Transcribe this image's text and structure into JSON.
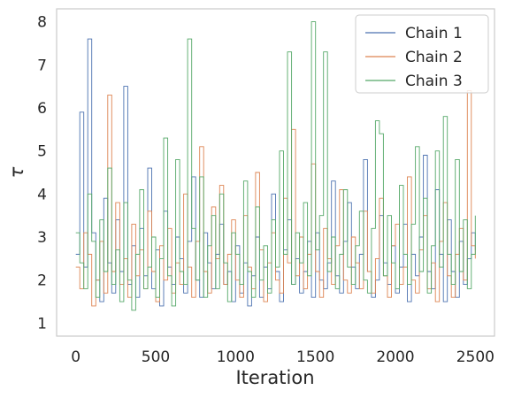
{
  "chart_data": {
    "type": "line",
    "title": "",
    "xlabel": "Iteration",
    "ylabel": "τ",
    "xlim": [
      -120,
      2620
    ],
    "ylim": [
      0.7,
      8.3
    ],
    "xticks": [
      0,
      500,
      1000,
      1500,
      2000,
      2500
    ],
    "yticks": [
      1,
      2,
      3,
      4,
      5,
      6,
      7,
      8
    ],
    "grid": false,
    "legend_position": "top-right",
    "n_iterations": 2500,
    "series": [
      {
        "name": "Chain 1",
        "color": "#4c72b0",
        "x": [
          0,
          25,
          50,
          75,
          100,
          125,
          150,
          175,
          200,
          225,
          250,
          275,
          300,
          325,
          350,
          375,
          400,
          425,
          450,
          475,
          500,
          525,
          550,
          575,
          600,
          625,
          650,
          675,
          700,
          725,
          750,
          775,
          800,
          825,
          850,
          875,
          900,
          925,
          950,
          975,
          1000,
          1025,
          1050,
          1075,
          1100,
          1125,
          1150,
          1175,
          1200,
          1225,
          1250,
          1275,
          1300,
          1325,
          1350,
          1375,
          1400,
          1425,
          1450,
          1475,
          1500,
          1525,
          1550,
          1575,
          1600,
          1625,
          1650,
          1675,
          1700,
          1725,
          1750,
          1775,
          1800,
          1825,
          1850,
          1875,
          1900,
          1925,
          1950,
          1975,
          2000,
          2025,
          2050,
          2075,
          2100,
          2125,
          2150,
          2175,
          2200,
          2225,
          2250,
          2275,
          2300,
          2325,
          2350,
          2375,
          2400,
          2425,
          2450,
          2475,
          2500
        ],
        "values": [
          2.6,
          5.9,
          2.3,
          7.6,
          3.1,
          2.0,
          1.5,
          3.9,
          2.4,
          1.7,
          3.4,
          2.2,
          6.5,
          1.9,
          2.8,
          1.6,
          3.2,
          2.1,
          4.6,
          1.8,
          2.7,
          1.4,
          3.6,
          2.3,
          1.9,
          3.0,
          2.5,
          1.7,
          2.9,
          4.4,
          2.0,
          1.6,
          3.1,
          2.4,
          1.8,
          2.6,
          3.3,
          1.9,
          2.2,
          1.5,
          2.8,
          1.7,
          2.4,
          1.4,
          2.1,
          3.0,
          1.6,
          2.3,
          1.8,
          4.0,
          2.2,
          1.5,
          2.7,
          3.4,
          1.9,
          2.5,
          1.7,
          2.2,
          2.9,
          1.6,
          3.1,
          2.0,
          1.8,
          2.4,
          4.3,
          2.1,
          1.7,
          2.9,
          3.8,
          2.3,
          1.8,
          2.6,
          4.8,
          2.2,
          1.6,
          2.0,
          3.5,
          2.4,
          1.9,
          2.8,
          1.7,
          2.3,
          3.3,
          1.5,
          2.6,
          2.1,
          3.0,
          4.9,
          2.2,
          1.8,
          4.1,
          2.6,
          1.5,
          3.4,
          2.2,
          1.6,
          2.9,
          1.9,
          2.5,
          3.1,
          2.7
        ]
      },
      {
        "name": "Chain 2",
        "color": "#dd8452",
        "x": [
          0,
          25,
          50,
          75,
          100,
          125,
          150,
          175,
          200,
          225,
          250,
          275,
          300,
          325,
          350,
          375,
          400,
          425,
          450,
          475,
          500,
          525,
          550,
          575,
          600,
          625,
          650,
          675,
          700,
          725,
          750,
          775,
          800,
          825,
          850,
          875,
          900,
          925,
          950,
          975,
          1000,
          1025,
          1050,
          1075,
          1100,
          1125,
          1150,
          1175,
          1200,
          1225,
          1250,
          1275,
          1300,
          1325,
          1350,
          1375,
          1400,
          1425,
          1450,
          1475,
          1500,
          1525,
          1550,
          1575,
          1600,
          1625,
          1650,
          1675,
          1700,
          1725,
          1750,
          1775,
          1800,
          1825,
          1850,
          1875,
          1900,
          1925,
          1950,
          1975,
          2000,
          2025,
          2050,
          2075,
          2100,
          2125,
          2150,
          2175,
          2200,
          2225,
          2250,
          2275,
          2300,
          2325,
          2350,
          2375,
          2400,
          2425,
          2450,
          2475,
          2500
        ],
        "values": [
          2.3,
          1.8,
          3.1,
          2.6,
          1.4,
          2.0,
          2.9,
          1.7,
          6.3,
          2.2,
          3.8,
          1.9,
          2.5,
          1.6,
          3.3,
          2.1,
          2.7,
          1.8,
          3.6,
          2.2,
          1.5,
          2.8,
          2.0,
          3.2,
          1.7,
          2.4,
          1.9,
          4.0,
          2.3,
          1.6,
          2.9,
          5.1,
          2.2,
          1.7,
          3.7,
          2.5,
          4.2,
          1.9,
          2.6,
          3.4,
          2.0,
          1.6,
          3.5,
          2.3,
          1.8,
          4.5,
          2.7,
          1.5,
          2.4,
          3.1,
          2.0,
          1.7,
          3.9,
          2.4,
          5.5,
          2.1,
          3.0,
          1.8,
          2.6,
          4.7,
          2.2,
          1.6,
          3.2,
          2.5,
          1.9,
          2.8,
          4.1,
          2.0,
          1.7,
          3.0,
          2.4,
          1.8,
          3.6,
          2.2,
          1.7,
          2.5,
          3.9,
          2.1,
          1.6,
          2.8,
          3.3,
          1.9,
          2.3,
          4.4,
          2.0,
          1.7,
          2.7,
          3.5,
          1.8,
          2.4,
          1.5,
          2.9,
          3.8,
          2.1,
          1.6,
          2.6,
          3.2,
          2.0,
          6.4,
          2.8,
          2.5
        ]
      },
      {
        "name": "Chain 3",
        "color": "#55a868",
        "x": [
          0,
          25,
          50,
          75,
          100,
          125,
          150,
          175,
          200,
          225,
          250,
          275,
          300,
          325,
          350,
          375,
          400,
          425,
          450,
          475,
          500,
          525,
          550,
          575,
          600,
          625,
          650,
          675,
          700,
          725,
          750,
          775,
          800,
          825,
          850,
          875,
          900,
          925,
          950,
          975,
          1000,
          1025,
          1050,
          1075,
          1100,
          1125,
          1150,
          1175,
          1200,
          1225,
          1250,
          1275,
          1300,
          1325,
          1350,
          1375,
          1400,
          1425,
          1450,
          1475,
          1500,
          1525,
          1550,
          1575,
          1600,
          1625,
          1650,
          1675,
          1700,
          1725,
          1750,
          1775,
          1800,
          1825,
          1850,
          1875,
          1900,
          1925,
          1950,
          1975,
          2000,
          2025,
          2050,
          2075,
          2100,
          2125,
          2150,
          2175,
          2200,
          2225,
          2250,
          2275,
          2300,
          2325,
          2350,
          2375,
          2400,
          2425,
          2450,
          2475,
          2500
        ],
        "values": [
          3.1,
          2.4,
          1.8,
          4.0,
          2.9,
          1.6,
          3.4,
          2.2,
          4.6,
          1.9,
          2.7,
          1.5,
          3.8,
          2.0,
          1.3,
          2.6,
          4.1,
          1.8,
          2.3,
          3.0,
          1.6,
          2.5,
          5.3,
          2.1,
          1.4,
          4.8,
          2.2,
          1.9,
          7.6,
          3.2,
          2.0,
          4.4,
          1.6,
          2.8,
          3.5,
          1.8,
          4.0,
          2.4,
          1.5,
          3.1,
          2.6,
          1.9,
          4.3,
          2.2,
          1.6,
          3.7,
          2.0,
          2.8,
          1.7,
          3.4,
          2.3,
          5.0,
          2.6,
          7.3,
          1.9,
          3.1,
          2.4,
          3.8,
          2.1,
          8.0,
          2.7,
          3.5,
          7.3,
          2.2,
          3.0,
          1.8,
          2.6,
          4.1,
          2.3,
          1.9,
          2.8,
          3.6,
          2.0,
          1.7,
          3.2,
          5.7,
          5.4,
          2.1,
          3.5,
          2.4,
          1.8,
          4.2,
          2.6,
          1.9,
          3.3,
          5.1,
          2.2,
          3.9,
          1.7,
          2.8,
          5.0,
          2.3,
          5.8,
          2.6,
          1.9,
          4.8,
          2.2,
          3.4,
          1.8,
          2.6,
          3.5
        ]
      }
    ]
  }
}
